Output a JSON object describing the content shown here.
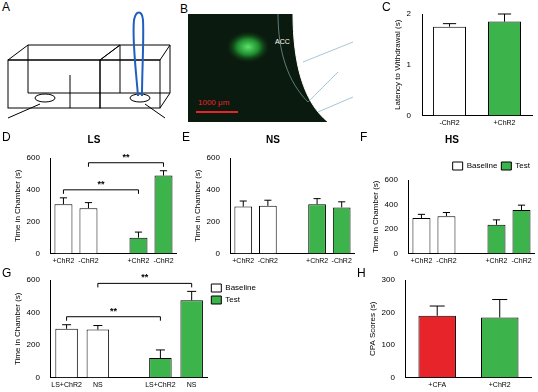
{
  "chart_data": [
    {
      "panel": "C",
      "type": "bar",
      "y_label": "Latency to Withdrawal (s)",
      "categories": [
        "-ChR2",
        "+ChR2"
      ],
      "values": [
        1.75,
        1.85
      ],
      "errors": [
        0.06,
        0.15
      ],
      "colors": [
        "#ffffff",
        "#3cb44b"
      ],
      "ylim": [
        0,
        2
      ],
      "yticks": [
        0,
        1,
        2
      ],
      "grid": false
    },
    {
      "panel": "D",
      "type": "bar",
      "title": "LS",
      "y_label": "Time in Chamber (s)",
      "categories": [
        "+ChR2",
        "-ChR2",
        null,
        "+ChR2",
        "-ChR2"
      ],
      "series": [
        {
          "color": "#ffffff",
          "values": [
            310,
            285,
            null,
            null,
            null
          ],
          "errors": [
            40,
            35,
            null,
            null,
            null
          ]
        },
        {
          "color": "#3cb44b",
          "values": [
            null,
            null,
            null,
            100,
            490
          ],
          "errors": [
            null,
            null,
            null,
            35,
            30
          ]
        }
      ],
      "ylim": [
        0,
        600
      ],
      "yticks": [
        0,
        200,
        400,
        600
      ],
      "grid": false,
      "annotations": [
        {
          "text": "**",
          "between": [
            0,
            3
          ]
        },
        {
          "text": "**",
          "between": [
            1,
            4
          ]
        }
      ]
    },
    {
      "panel": "E",
      "type": "bar",
      "title": "NS",
      "y_label": "Time in Chamber (s)",
      "categories": [
        "+ChR2",
        "-ChR2",
        null,
        "+ChR2",
        "-ChR2"
      ],
      "series": [
        {
          "color": "#ffffff",
          "values": [
            295,
            300,
            null,
            null,
            null
          ],
          "errors": [
            35,
            35,
            null,
            null,
            null
          ]
        },
        {
          "color": "#3cb44b",
          "values": [
            null,
            null,
            null,
            310,
            290
          ],
          "errors": [
            null,
            null,
            null,
            35,
            35
          ]
        }
      ],
      "ylim": [
        0,
        600
      ],
      "yticks": [
        0,
        200,
        400,
        600
      ],
      "grid": false
    },
    {
      "panel": "F",
      "type": "bar",
      "title": "HS",
      "y_label": "Time in Chamber (s)",
      "categories": [
        "+ChR2",
        "-ChR2",
        null,
        "+ChR2",
        "-ChR2"
      ],
      "series": [
        {
          "name": "Baseline",
          "color": "#ffffff",
          "values": [
            290,
            305,
            null,
            null,
            null
          ],
          "errors": [
            30,
            30,
            null,
            null,
            null
          ]
        },
        {
          "name": "Test",
          "color": "#3cb44b",
          "values": [
            null,
            null,
            null,
            235,
            355
          ],
          "errors": [
            null,
            null,
            null,
            40,
            40
          ]
        }
      ],
      "ylim": [
        0,
        600
      ],
      "yticks": [
        0,
        200,
        400,
        600
      ],
      "grid": false,
      "legend": "top right"
    },
    {
      "panel": "G",
      "type": "bar",
      "y_label": "Time in Chamber (s)",
      "categories": [
        "LS+ChR2",
        "NS",
        null,
        "LS+ChR2",
        "NS"
      ],
      "series": [
        {
          "name": "Baseline",
          "color": "#ffffff",
          "values": [
            300,
            295,
            null,
            null,
            null
          ],
          "errors": [
            25,
            25,
            null,
            null,
            null
          ]
        },
        {
          "name": "Test",
          "color": "#3cb44b",
          "values": [
            null,
            null,
            null,
            120,
            475
          ],
          "errors": [
            null,
            null,
            null,
            50,
            55
          ]
        }
      ],
      "ylim": [
        0,
        600
      ],
      "yticks": [
        0,
        200,
        400,
        600
      ],
      "grid": false,
      "legend": "right",
      "annotations": [
        {
          "text": "**",
          "between": [
            0,
            3
          ]
        },
        {
          "text": "**",
          "between": [
            1,
            4
          ]
        }
      ]
    },
    {
      "panel": "H",
      "type": "bar",
      "y_label": "CPA Scores (s)",
      "categories": [
        "+CFA",
        "+ChR2"
      ],
      "values": [
        190,
        185
      ],
      "errors": [
        30,
        55
      ],
      "colors": [
        "#e8242b",
        "#3cb44b"
      ],
      "ylim": [
        0,
        300
      ],
      "yticks": [
        0,
        100,
        200,
        300
      ],
      "grid": false
    }
  ],
  "figure": {
    "panel_a": {
      "panel": "A"
    },
    "panel_b": {
      "panel": "B",
      "region_label": "ACC",
      "scale_bar_label": "1000 μm"
    }
  }
}
